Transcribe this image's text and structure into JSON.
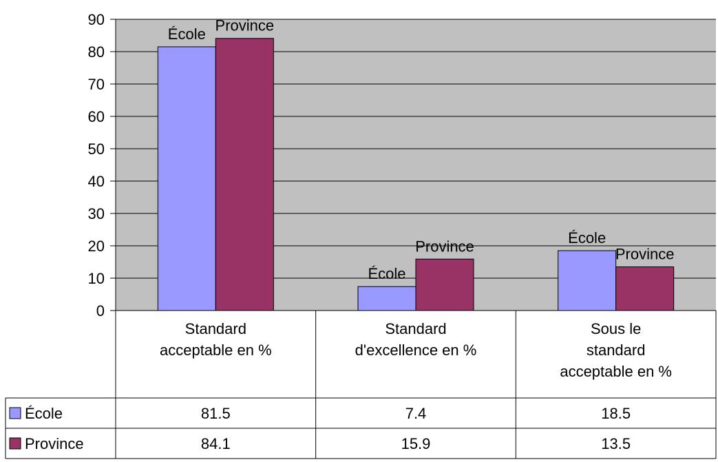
{
  "chart_data": {
    "type": "bar",
    "categories": [
      [
        "Standard",
        "acceptable en %"
      ],
      [
        "Standard",
        "d'excellence en %"
      ],
      [
        "Sous le",
        "standard",
        "acceptable en %"
      ]
    ],
    "series": [
      {
        "name": "École",
        "values": [
          81.5,
          7.4,
          18.5
        ],
        "display": [
          "81.5",
          "7.4",
          "18.5"
        ],
        "color": "#9999ff"
      },
      {
        "name": "Province",
        "values": [
          84.1,
          15.9,
          13.5
        ],
        "display": [
          "84.1",
          "15.9",
          "13.5"
        ],
        "color": "#993366"
      }
    ],
    "ylim": [
      0,
      90
    ],
    "yticks": [
      0,
      10,
      20,
      30,
      40,
      50,
      60,
      70,
      80,
      90
    ],
    "plot_background": "#c0c0c0",
    "grid": true,
    "data_labels": "series name",
    "legend": "data table",
    "title": "",
    "xlabel": "",
    "ylabel": ""
  }
}
